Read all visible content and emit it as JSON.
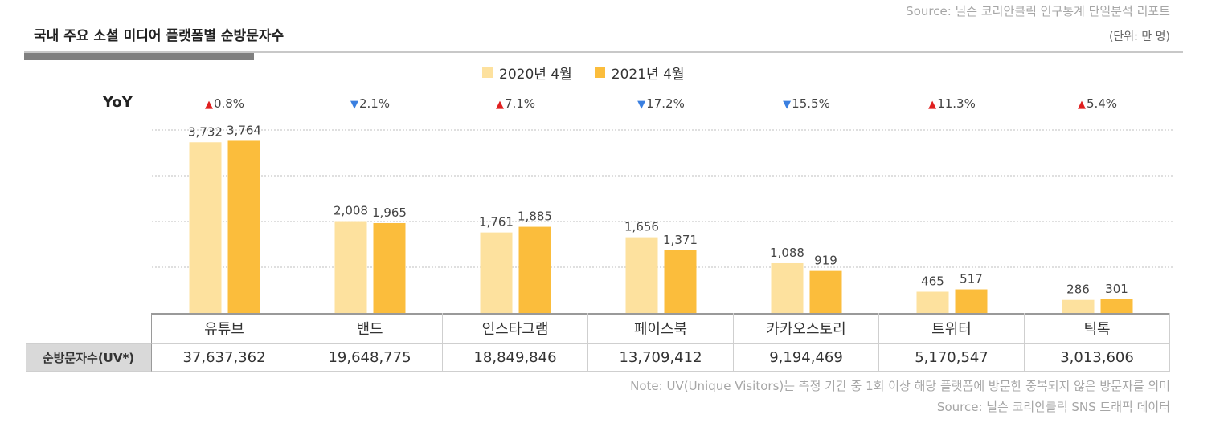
{
  "header": {
    "title": "국내 주요 소셜 미디어 플랫폼별 순방문자수",
    "source_top": "Source: 닐슨 코리안클릭 인구통계 단일분석 리포트",
    "unit": "(단위: 만 명)"
  },
  "yoy": {
    "label": "YoY",
    "up_symbol": "▲",
    "down_symbol": "▼",
    "up_color": "#e02020",
    "down_color": "#3a7fe0",
    "items": [
      {
        "dir": "up",
        "value": "0.8%"
      },
      {
        "dir": "down",
        "value": "2.1%"
      },
      {
        "dir": "up",
        "value": "7.1%"
      },
      {
        "dir": "down",
        "value": "17.2%"
      },
      {
        "dir": "down",
        "value": "15.5%"
      },
      {
        "dir": "up",
        "value": "11.3%"
      },
      {
        "dir": "up",
        "value": "5.4%"
      }
    ]
  },
  "chart_data": {
    "type": "bar",
    "title": "국내 주요 소셜 미디어 플랫폼별 순방문자수",
    "categories": [
      "유튜브",
      "밴드",
      "인스타그램",
      "페이스북",
      "카카오스토리",
      "트위터",
      "틱톡"
    ],
    "series": [
      {
        "name": "2020년 4월",
        "color": "#fde19e",
        "values": [
          3732,
          2008,
          1761,
          1656,
          1088,
          465,
          286
        ],
        "labels": [
          "3,732",
          "2,008",
          "1,761",
          "1,656",
          "1,088",
          "465",
          "286"
        ]
      },
      {
        "name": "2021년 4월",
        "color": "#fbbd3c",
        "values": [
          3764,
          1965,
          1885,
          1371,
          919,
          517,
          301
        ],
        "labels": [
          "3,764",
          "1,965",
          "1,885",
          "1,371",
          "919",
          "517",
          "301"
        ]
      }
    ],
    "ylim": [
      0,
      4000
    ],
    "grid": true,
    "legend_position": "top-center"
  },
  "table": {
    "row_label": "순방문자수(UV*)",
    "values": [
      "37,637,362",
      "19,648,775",
      "18,849,846",
      "13,709,412",
      "9,194,469",
      "5,170,547",
      "3,013,606"
    ]
  },
  "footer": {
    "note": "Note: UV(Unique Visitors)는 측정 기간 중 1회 이상 해당 플랫폼에 방문한 중복되지 않은 방문자를 의미",
    "source": "Source: 닐슨 코리안클릭 SNS 트래픽 데이터"
  }
}
